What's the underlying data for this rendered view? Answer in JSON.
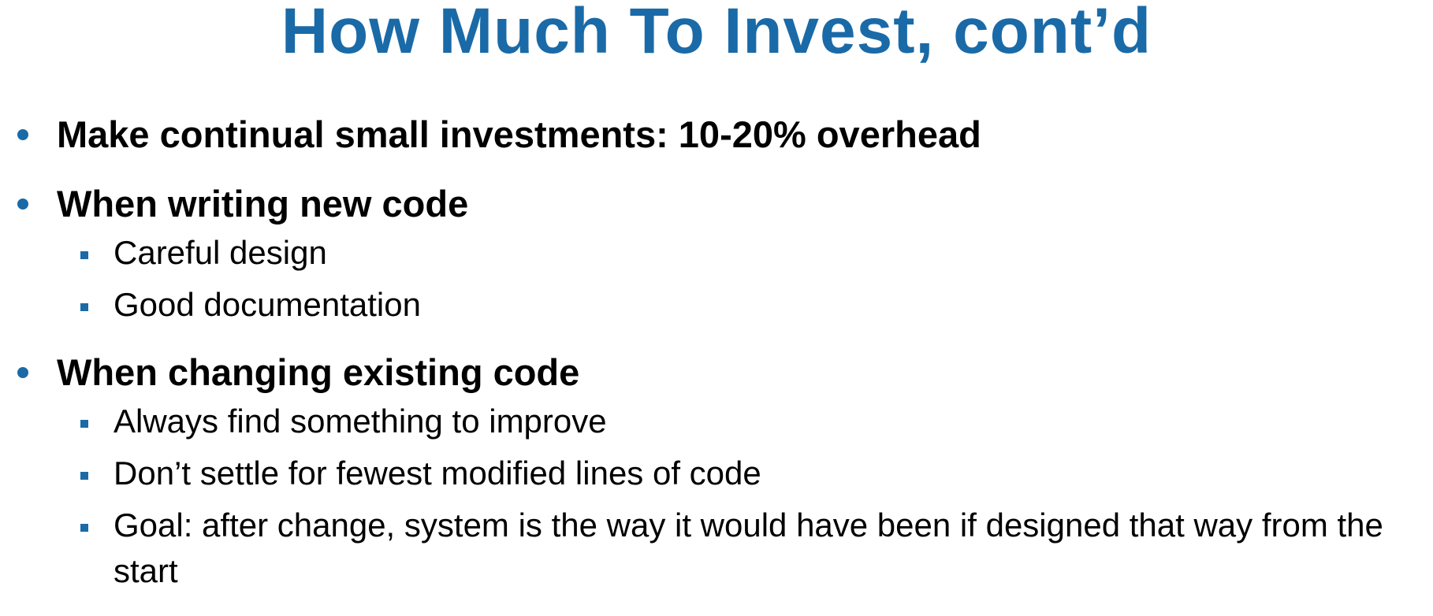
{
  "slide": {
    "title": "How Much To Invest, cont’d",
    "bullets": [
      {
        "text": "Make continual small investments: 10-20% overhead",
        "sub": []
      },
      {
        "text": "When writing new code",
        "sub": [
          "Careful design",
          "Good documentation"
        ]
      },
      {
        "text": "When changing existing code",
        "sub": [
          "Always find something to improve",
          "Don’t settle for fewest modified lines of code",
          "Goal: after change, system is the way it would have been if designed that way from the start"
        ]
      }
    ]
  },
  "colors": {
    "accent": "#1a6aa8",
    "text": "#000000",
    "background": "#ffffff"
  }
}
